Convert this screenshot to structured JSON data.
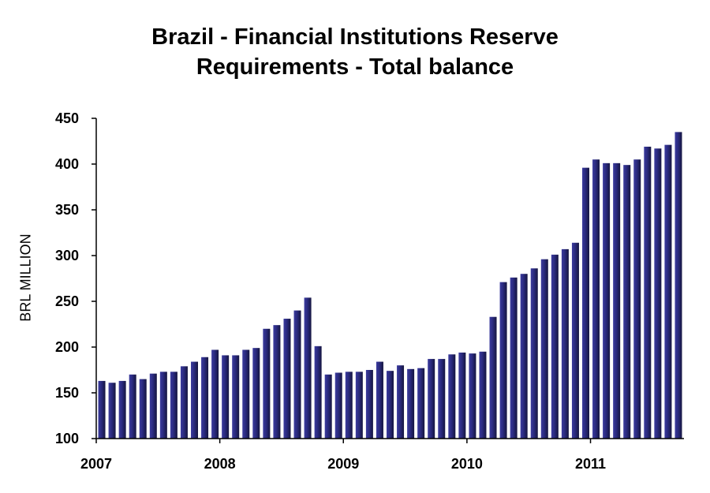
{
  "chart_data": {
    "type": "bar",
    "title": "Brazil - Financial Institutions Reserve Requirements - Total balance",
    "title_lines": [
      "Brazil - Financial Institutions Reserve",
      "Requirements - Total balance"
    ],
    "xlabel": "",
    "ylabel": "BRL MILLION",
    "ylim": [
      100,
      450
    ],
    "yticks": [
      100,
      150,
      200,
      250,
      300,
      350,
      400,
      450
    ],
    "xtick_labels": [
      "2007",
      "2008",
      "2009",
      "2010",
      "2011"
    ],
    "grid": false,
    "legend": null,
    "bar_color": "#2a2a80",
    "categories": [
      "2007-01",
      "2007-02",
      "2007-03",
      "2007-04",
      "2007-05",
      "2007-06",
      "2007-07",
      "2007-08",
      "2007-09",
      "2007-10",
      "2007-11",
      "2007-12",
      "2008-01",
      "2008-02",
      "2008-03",
      "2008-04",
      "2008-05",
      "2008-06",
      "2008-07",
      "2008-08",
      "2008-09",
      "2008-10",
      "2008-11",
      "2008-12",
      "2009-01",
      "2009-02",
      "2009-03",
      "2009-04",
      "2009-05",
      "2009-06",
      "2009-07",
      "2009-08",
      "2009-09",
      "2009-10",
      "2009-11",
      "2009-12",
      "2010-01",
      "2010-02",
      "2010-03",
      "2010-04",
      "2010-05",
      "2010-06",
      "2010-07",
      "2010-08",
      "2010-09",
      "2010-10",
      "2010-11",
      "2010-12",
      "2011-01",
      "2011-02",
      "2011-03",
      "2011-04",
      "2011-05",
      "2011-06",
      "2011-07",
      "2011-08",
      "2011-09"
    ],
    "values": [
      163,
      161,
      163,
      170,
      165,
      171,
      173,
      173,
      179,
      184,
      189,
      197,
      191,
      191,
      197,
      199,
      220,
      224,
      231,
      240,
      254,
      201,
      170,
      172,
      173,
      173,
      175,
      184,
      174,
      180,
      176,
      177,
      187,
      187,
      192,
      194,
      193,
      195,
      233,
      271,
      276,
      280,
      286,
      296,
      301,
      307,
      314,
      396,
      405,
      401,
      401,
      399,
      405,
      419,
      417,
      421,
      435
    ]
  }
}
